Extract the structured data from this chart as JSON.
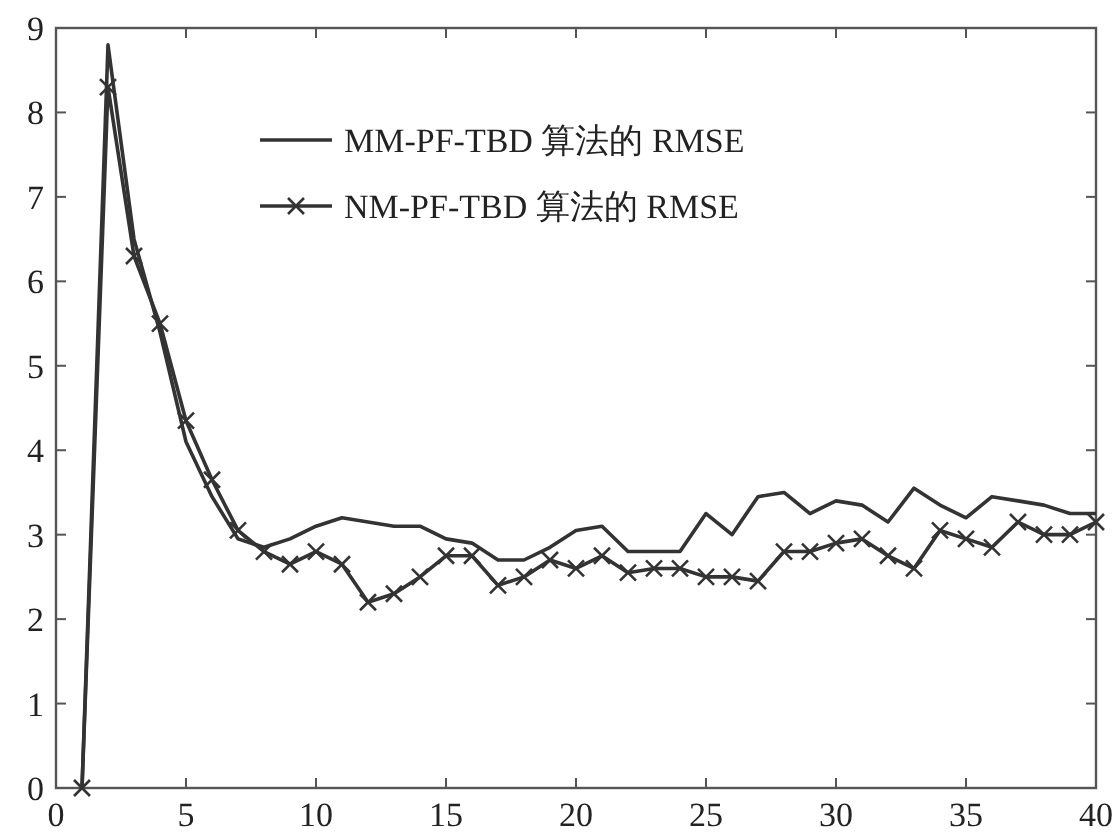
{
  "chart_data": {
    "type": "line",
    "x": [
      1,
      2,
      3,
      4,
      5,
      6,
      7,
      8,
      9,
      10,
      11,
      12,
      13,
      14,
      15,
      16,
      17,
      18,
      19,
      20,
      21,
      22,
      23,
      24,
      25,
      26,
      27,
      28,
      29,
      30,
      31,
      32,
      33,
      34,
      35,
      36,
      37,
      38,
      39,
      40
    ],
    "series": [
      {
        "name": "MM-PF-TBD 算法的 RMSE",
        "color": "#333333",
        "marker": "none",
        "values": [
          0,
          8.8,
          6.5,
          5.4,
          4.1,
          3.45,
          2.95,
          2.85,
          2.95,
          3.1,
          3.2,
          3.15,
          3.1,
          3.1,
          2.95,
          2.9,
          2.7,
          2.7,
          2.85,
          3.05,
          3.1,
          2.8,
          2.8,
          2.8,
          3.25,
          3.0,
          3.45,
          3.5,
          3.25,
          3.4,
          3.35,
          3.15,
          3.55,
          3.35,
          3.2,
          3.45,
          3.4,
          3.35,
          3.25,
          3.25
        ]
      },
      {
        "name": "NM-PF-TBD 算法的 RMSE",
        "color": "#333333",
        "marker": "cross",
        "values": [
          0,
          8.3,
          6.3,
          5.5,
          4.35,
          3.65,
          3.05,
          2.8,
          2.65,
          2.8,
          2.65,
          2.2,
          2.3,
          2.5,
          2.75,
          2.75,
          2.4,
          2.5,
          2.7,
          2.6,
          2.75,
          2.55,
          2.6,
          2.6,
          2.5,
          2.5,
          2.45,
          2.8,
          2.8,
          2.9,
          2.95,
          2.75,
          2.6,
          3.05,
          2.95,
          2.85,
          3.15,
          3.0,
          3.0,
          3.15
        ]
      }
    ],
    "xlim": [
      0,
      40
    ],
    "ylim": [
      0,
      9
    ],
    "xticks": [
      0,
      5,
      10,
      15,
      20,
      25,
      30,
      35,
      40
    ],
    "yticks": [
      0,
      1,
      2,
      3,
      4,
      5,
      6,
      7,
      8,
      9
    ],
    "legend": "top",
    "grid": false
  }
}
